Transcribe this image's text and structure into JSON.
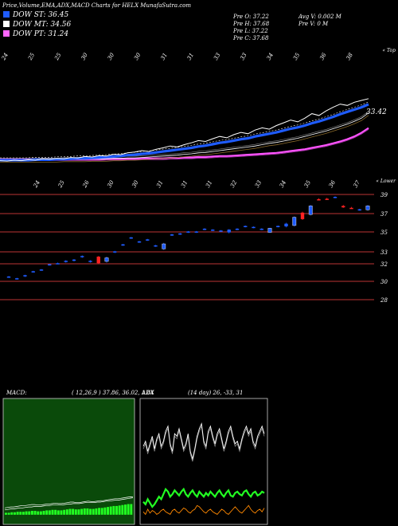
{
  "header": {
    "title": "Price,Volume,EMA,ADX,MACD Charts for HELX  MunafaSutra.com",
    "ohlc": [
      {
        "label": "Pre  O:",
        "value": "37.22"
      },
      {
        "label": "Pre  H:",
        "value": "37.68"
      },
      {
        "label": "Pre  L:",
        "value": "37.22"
      },
      {
        "label": "Pre  C:",
        "value": "37.68"
      }
    ],
    "volume": [
      {
        "label": "Avg V:",
        "value": "0.002  M"
      },
      {
        "label": "Pre  V:",
        "value": "0  M"
      }
    ]
  },
  "legend": [
    {
      "label": "DOW ST: 36.45",
      "color": "#1f5cff"
    },
    {
      "label": "DOW MT: 34.56",
      "color": "#ffffff"
    },
    {
      "label": "DOW PT: 31.24",
      "color": "#ff66ff"
    }
  ],
  "chart_data": [
    {
      "type": "line",
      "panel": "price-ema",
      "x_ticks": [
        "24",
        "25",
        "25",
        "30",
        "30",
        "30",
        "31",
        "31",
        "33",
        "33",
        "34",
        "35",
        "36",
        "38"
      ],
      "corner_label": "« Top",
      "last_price_label": "33.42",
      "colors": {
        "price": "#ffffff",
        "ema_short": "#1f5cff",
        "ema_mid": "#ffffff",
        "ema_long": "#ff55ff"
      },
      "series": [
        {
          "name": "Price",
          "values": [
            24.1,
            24.0,
            24.2,
            24.1,
            24.3,
            24.2,
            24.5,
            24.4,
            24.6,
            24.5,
            24.8,
            24.7,
            25.0,
            24.9,
            25.2,
            25.1,
            25.5,
            25.4,
            25.8,
            26.0,
            26.3,
            26.1,
            26.6,
            26.9,
            27.3,
            27.1,
            27.6,
            28.0,
            28.5,
            28.3,
            28.9,
            29.4,
            29.1,
            29.8,
            30.3,
            30.0,
            30.8,
            31.3,
            31.0,
            31.8,
            32.4,
            33.0,
            32.6,
            33.4,
            34.4,
            34.0,
            35.0,
            35.8,
            36.5,
            36.2,
            36.9,
            37.3,
            37.68
          ]
        },
        {
          "name": "EMA short",
          "values": [
            24.2,
            24.2,
            24.2,
            24.2,
            24.2,
            24.3,
            24.3,
            24.3,
            24.4,
            24.4,
            24.5,
            24.6,
            24.6,
            24.7,
            24.8,
            24.9,
            25.0,
            25.1,
            25.3,
            25.4,
            25.6,
            25.7,
            25.9,
            26.1,
            26.3,
            26.5,
            26.7,
            26.9,
            27.2,
            27.4,
            27.7,
            28.0,
            28.2,
            28.5,
            28.8,
            29.0,
            29.4,
            29.7,
            30.0,
            30.3,
            30.7,
            31.1,
            31.4,
            31.8,
            32.3,
            32.7,
            33.2,
            33.7,
            34.3,
            34.8,
            35.3,
            35.8,
            36.45
          ]
        },
        {
          "name": "EMA mid",
          "values": [
            24.3,
            24.3,
            24.3,
            24.3,
            24.3,
            24.3,
            24.3,
            24.3,
            24.3,
            24.4,
            24.4,
            24.4,
            24.4,
            24.5,
            24.5,
            24.5,
            24.6,
            24.6,
            24.7,
            24.7,
            24.8,
            24.9,
            25.0,
            25.1,
            25.2,
            25.3,
            25.5,
            25.6,
            25.8,
            25.9,
            26.1,
            26.3,
            26.5,
            26.7,
            26.9,
            27.1,
            27.3,
            27.6,
            27.9,
            28.1,
            28.4,
            28.7,
            29.0,
            29.4,
            29.8,
            30.2,
            30.6,
            31.1,
            31.6,
            32.1,
            32.7,
            33.4,
            34.56
          ]
        },
        {
          "name": "EMA long",
          "values": [
            24.4,
            24.4,
            24.4,
            24.4,
            24.4,
            24.4,
            24.4,
            24.4,
            24.4,
            24.4,
            24.4,
            24.4,
            24.4,
            24.4,
            24.4,
            24.5,
            24.5,
            24.5,
            24.5,
            24.5,
            24.6,
            24.6,
            24.6,
            24.6,
            24.7,
            24.7,
            24.8,
            24.8,
            24.9,
            24.9,
            25.0,
            25.1,
            25.1,
            25.2,
            25.3,
            25.4,
            25.5,
            25.6,
            25.7,
            25.8,
            26.0,
            26.2,
            26.4,
            26.6,
            26.9,
            27.2,
            27.5,
            27.9,
            28.3,
            28.8,
            29.4,
            30.2,
            31.24
          ]
        }
      ]
    },
    {
      "type": "candlestick",
      "panel": "price-candles",
      "x_ticks": [
        "24",
        "25",
        "26",
        "30",
        "30",
        "31",
        "31",
        "31",
        "32",
        "33",
        "34",
        "35",
        "36",
        "37"
      ],
      "corner_label": "« Lower",
      "y_ticks": [
        28,
        30,
        32,
        33,
        35,
        37,
        39
      ],
      "levels": [
        28,
        30,
        32,
        33,
        35,
        37,
        39
      ],
      "ylim": [
        27,
        40
      ],
      "colors": {
        "up": "#1f5cff",
        "down": "#ff2222"
      },
      "candles": [
        {
          "o": 30.5,
          "h": 30.6,
          "l": 30.4,
          "c": 30.55
        },
        {
          "o": 30.3,
          "h": 30.4,
          "l": 30.2,
          "c": 30.35
        },
        {
          "o": 30.6,
          "h": 30.75,
          "l": 30.5,
          "c": 30.7
        },
        {
          "o": 31.1,
          "h": 31.2,
          "l": 31.0,
          "c": 31.15
        },
        {
          "o": 31.3,
          "h": 31.4,
          "l": 31.2,
          "c": 31.35
        },
        {
          "o": 31.9,
          "h": 32.0,
          "l": 31.8,
          "c": 31.95
        },
        {
          "o": 32.0,
          "h": 32.1,
          "l": 31.95,
          "c": 32.05
        },
        {
          "o": 32.2,
          "h": 32.3,
          "l": 32.1,
          "c": 32.25
        },
        {
          "o": 32.3,
          "h": 32.4,
          "l": 32.2,
          "c": 32.35
        },
        {
          "o": 32.6,
          "h": 32.7,
          "l": 32.5,
          "c": 32.65
        },
        {
          "o": 32.2,
          "h": 32.3,
          "l": 32.1,
          "c": 32.25
        },
        {
          "o": 32.6,
          "h": 32.65,
          "l": 32.0,
          "c": 32.05
        },
        {
          "o": 32.2,
          "h": 32.6,
          "l": 32.1,
          "c": 32.5
        },
        {
          "o": 33.0,
          "h": 33.1,
          "l": 32.9,
          "c": 33.05
        },
        {
          "o": 33.7,
          "h": 33.8,
          "l": 33.6,
          "c": 33.75
        },
        {
          "o": 34.4,
          "h": 34.5,
          "l": 34.3,
          "c": 34.45
        },
        {
          "o": 34.0,
          "h": 34.1,
          "l": 33.9,
          "c": 34.05
        },
        {
          "o": 34.2,
          "h": 34.3,
          "l": 34.1,
          "c": 34.25
        },
        {
          "o": 33.6,
          "h": 33.7,
          "l": 33.5,
          "c": 33.65
        },
        {
          "o": 33.3,
          "h": 33.9,
          "l": 33.2,
          "c": 33.8
        },
        {
          "o": 34.7,
          "h": 34.8,
          "l": 34.6,
          "c": 34.75
        },
        {
          "o": 34.8,
          "h": 34.9,
          "l": 34.7,
          "c": 34.85
        },
        {
          "o": 35.0,
          "h": 35.1,
          "l": 34.9,
          "c": 35.05
        },
        {
          "o": 35.0,
          "h": 35.1,
          "l": 34.9,
          "c": 35.05
        },
        {
          "o": 35.3,
          "h": 35.4,
          "l": 35.2,
          "c": 35.35
        },
        {
          "o": 35.2,
          "h": 35.3,
          "l": 35.1,
          "c": 35.25
        },
        {
          "o": 35.1,
          "h": 35.2,
          "l": 35.0,
          "c": 35.15
        },
        {
          "o": 34.95,
          "h": 35.3,
          "l": 34.85,
          "c": 35.25
        },
        {
          "o": 35.3,
          "h": 35.4,
          "l": 35.2,
          "c": 35.35
        },
        {
          "o": 35.6,
          "h": 35.7,
          "l": 35.5,
          "c": 35.65
        },
        {
          "o": 35.5,
          "h": 35.6,
          "l": 35.4,
          "c": 35.55
        },
        {
          "o": 35.3,
          "h": 35.4,
          "l": 35.2,
          "c": 35.35
        },
        {
          "o": 34.95,
          "h": 35.45,
          "l": 34.9,
          "c": 35.4
        },
        {
          "o": 35.6,
          "h": 35.7,
          "l": 35.5,
          "c": 35.65
        },
        {
          "o": 35.6,
          "h": 36.0,
          "l": 35.5,
          "c": 35.9
        },
        {
          "o": 35.7,
          "h": 36.7,
          "l": 35.6,
          "c": 36.6
        },
        {
          "o": 37.1,
          "h": 37.2,
          "l": 36.3,
          "c": 36.4
        },
        {
          "o": 36.9,
          "h": 37.9,
          "l": 36.8,
          "c": 37.8
        },
        {
          "o": 38.5,
          "h": 38.6,
          "l": 38.4,
          "c": 38.45
        },
        {
          "o": 38.55,
          "h": 38.65,
          "l": 38.45,
          "c": 38.5
        },
        {
          "o": 38.7,
          "h": 38.8,
          "l": 38.6,
          "c": 38.75
        },
        {
          "o": 37.8,
          "h": 37.9,
          "l": 37.6,
          "c": 37.65
        },
        {
          "o": 37.6,
          "h": 37.7,
          "l": 37.5,
          "c": 37.55
        },
        {
          "o": 37.4,
          "h": 37.5,
          "l": 37.3,
          "c": 37.45
        },
        {
          "o": 37.4,
          "h": 37.9,
          "l": 37.3,
          "c": 37.8
        }
      ]
    },
    {
      "type": "bar",
      "panel": "macd",
      "title": "MACD:",
      "params": "( 12,26,9 ) 37.86,  36.02,  1.84",
      "colors": {
        "histogram": "#22ff22",
        "macd": "#ffffff",
        "signal": "#ffffff"
      },
      "series": [
        {
          "name": "histogram",
          "values": [
            0.2,
            0.2,
            0.25,
            0.25,
            0.3,
            0.3,
            0.3,
            0.35,
            0.35,
            0.4,
            0.4,
            0.35,
            0.35,
            0.4,
            0.45,
            0.45,
            0.5,
            0.5,
            0.45,
            0.45,
            0.5,
            0.55,
            0.6,
            0.6,
            0.55,
            0.55,
            0.6,
            0.65,
            0.65,
            0.6,
            0.6,
            0.65,
            0.7,
            0.7,
            0.75,
            0.8,
            0.85,
            0.9,
            0.9,
            0.95,
            1.0,
            1.05,
            1.1,
            1.1
          ]
        },
        {
          "name": "macd",
          "values": [
            0.7,
            0.75,
            0.8,
            0.8,
            0.85,
            0.9,
            0.95,
            0.95,
            1.0,
            1.05,
            1.05,
            1.0,
            1.0,
            1.05,
            1.1,
            1.1,
            1.15,
            1.2,
            1.15,
            1.15,
            1.2,
            1.25,
            1.3,
            1.3,
            1.25,
            1.25,
            1.3,
            1.35,
            1.4,
            1.35,
            1.35,
            1.4,
            1.45,
            1.45,
            1.5,
            1.55,
            1.6,
            1.65,
            1.65,
            1.7,
            1.75,
            1.8,
            1.85,
            1.84
          ]
        },
        {
          "name": "signal",
          "values": [
            0.5,
            0.55,
            0.6,
            0.6,
            0.65,
            0.7,
            0.7,
            0.75,
            0.8,
            0.8,
            0.85,
            0.85,
            0.85,
            0.9,
            0.95,
            0.95,
            1.0,
            1.0,
            1.0,
            1.0,
            1.05,
            1.1,
            1.1,
            1.15,
            1.15,
            1.15,
            1.2,
            1.25,
            1.25,
            1.25,
            1.25,
            1.3,
            1.3,
            1.35,
            1.4,
            1.4,
            1.45,
            1.5,
            1.5,
            1.55,
            1.6,
            1.65,
            1.7,
            1.75
          ]
        }
      ],
      "ylim": [
        -1,
        12
      ]
    },
    {
      "type": "line",
      "panel": "adx",
      "title": "ADX",
      "params": "(14  day) 26,  -33,  31",
      "colors": {
        "adx": "#ffffff",
        "plus_di": "#22ff22",
        "minus_di": "#ff8800"
      },
      "series": [
        {
          "name": "adx",
          "values": [
            62,
            66,
            58,
            64,
            70,
            60,
            68,
            72,
            62,
            66,
            74,
            78,
            64,
            58,
            72,
            70,
            76,
            68,
            60,
            64,
            72,
            58,
            52,
            60,
            70,
            76,
            80,
            66,
            62,
            74,
            78,
            70,
            64,
            72,
            76,
            68,
            60,
            66,
            74,
            78,
            70,
            64,
            66,
            60,
            68,
            74,
            78,
            72,
            76,
            66,
            62,
            70,
            74,
            78,
            72
          ]
        },
        {
          "name": "plus_di",
          "values": [
            18,
            16,
            20,
            17,
            14,
            16,
            19,
            22,
            20,
            24,
            28,
            26,
            22,
            24,
            27,
            25,
            23,
            26,
            28,
            24,
            22,
            25,
            27,
            24,
            22,
            26,
            24,
            22,
            25,
            23,
            26,
            24,
            22,
            25,
            27,
            24,
            22,
            25,
            27,
            23,
            22,
            25,
            26,
            24,
            23,
            26,
            27,
            24,
            22,
            25,
            26,
            23,
            24,
            26,
            25
          ]
        },
        {
          "name": "minus_di",
          "values": [
            10,
            8,
            12,
            9,
            11,
            10,
            8,
            9,
            11,
            12,
            10,
            9,
            8,
            11,
            12,
            10,
            9,
            11,
            13,
            12,
            10,
            9,
            11,
            12,
            15,
            14,
            12,
            10,
            9,
            11,
            12,
            10,
            9,
            8,
            10,
            12,
            11,
            9,
            8,
            10,
            12,
            14,
            12,
            10,
            9,
            11,
            13,
            15,
            12,
            10,
            9,
            11,
            12,
            10,
            13
          ]
        },
        {
          "name": "adx_shadow",
          "values": [
            60,
            64,
            56,
            62,
            68,
            58,
            66,
            70,
            60,
            64,
            72,
            76,
            62,
            56,
            70,
            68,
            74,
            66,
            58,
            62,
            70,
            56,
            50,
            58,
            68,
            74,
            78,
            64,
            60,
            72,
            76,
            68,
            62,
            70,
            74,
            66,
            58,
            64,
            72,
            76,
            68,
            62,
            64,
            58,
            66,
            72,
            76,
            70,
            74,
            64,
            60,
            68,
            72,
            76,
            70
          ]
        }
      ],
      "ylim": [
        0,
        100
      ]
    }
  ]
}
